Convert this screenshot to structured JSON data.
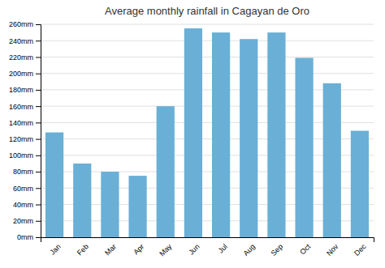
{
  "chart_data": {
    "type": "bar",
    "title": "Average monthly rainfall in Cagayan de Oro",
    "categories": [
      "Jan",
      "Feb",
      "Mar",
      "Apr",
      "May",
      "Jun",
      "Jul",
      "Aug",
      "Sep",
      "Oct",
      "Nov",
      "Dec"
    ],
    "values": [
      128,
      90,
      80,
      75,
      160,
      255,
      250,
      242,
      250,
      219,
      188,
      130
    ],
    "color": "#6aafd6",
    "ylim": [
      0,
      260
    ],
    "yticks": [
      {
        "value": 0,
        "label": "0mm"
      },
      {
        "value": 20,
        "label": "20mm"
      },
      {
        "value": 40,
        "label": "40mm"
      },
      {
        "value": 60,
        "label": "60mm"
      },
      {
        "value": 80,
        "label": "80mm"
      },
      {
        "value": 100,
        "label": "100mm"
      },
      {
        "value": 120,
        "label": "120mm"
      },
      {
        "value": 140,
        "label": "140mm"
      },
      {
        "value": 160,
        "label": "160mm"
      },
      {
        "value": 180,
        "label": "180mm"
      },
      {
        "value": 200,
        "label": "200mm"
      },
      {
        "value": 220,
        "label": "220mm"
      },
      {
        "value": 240,
        "label": "240mm"
      },
      {
        "value": 260,
        "label": "260mm"
      }
    ],
    "grid": true
  }
}
